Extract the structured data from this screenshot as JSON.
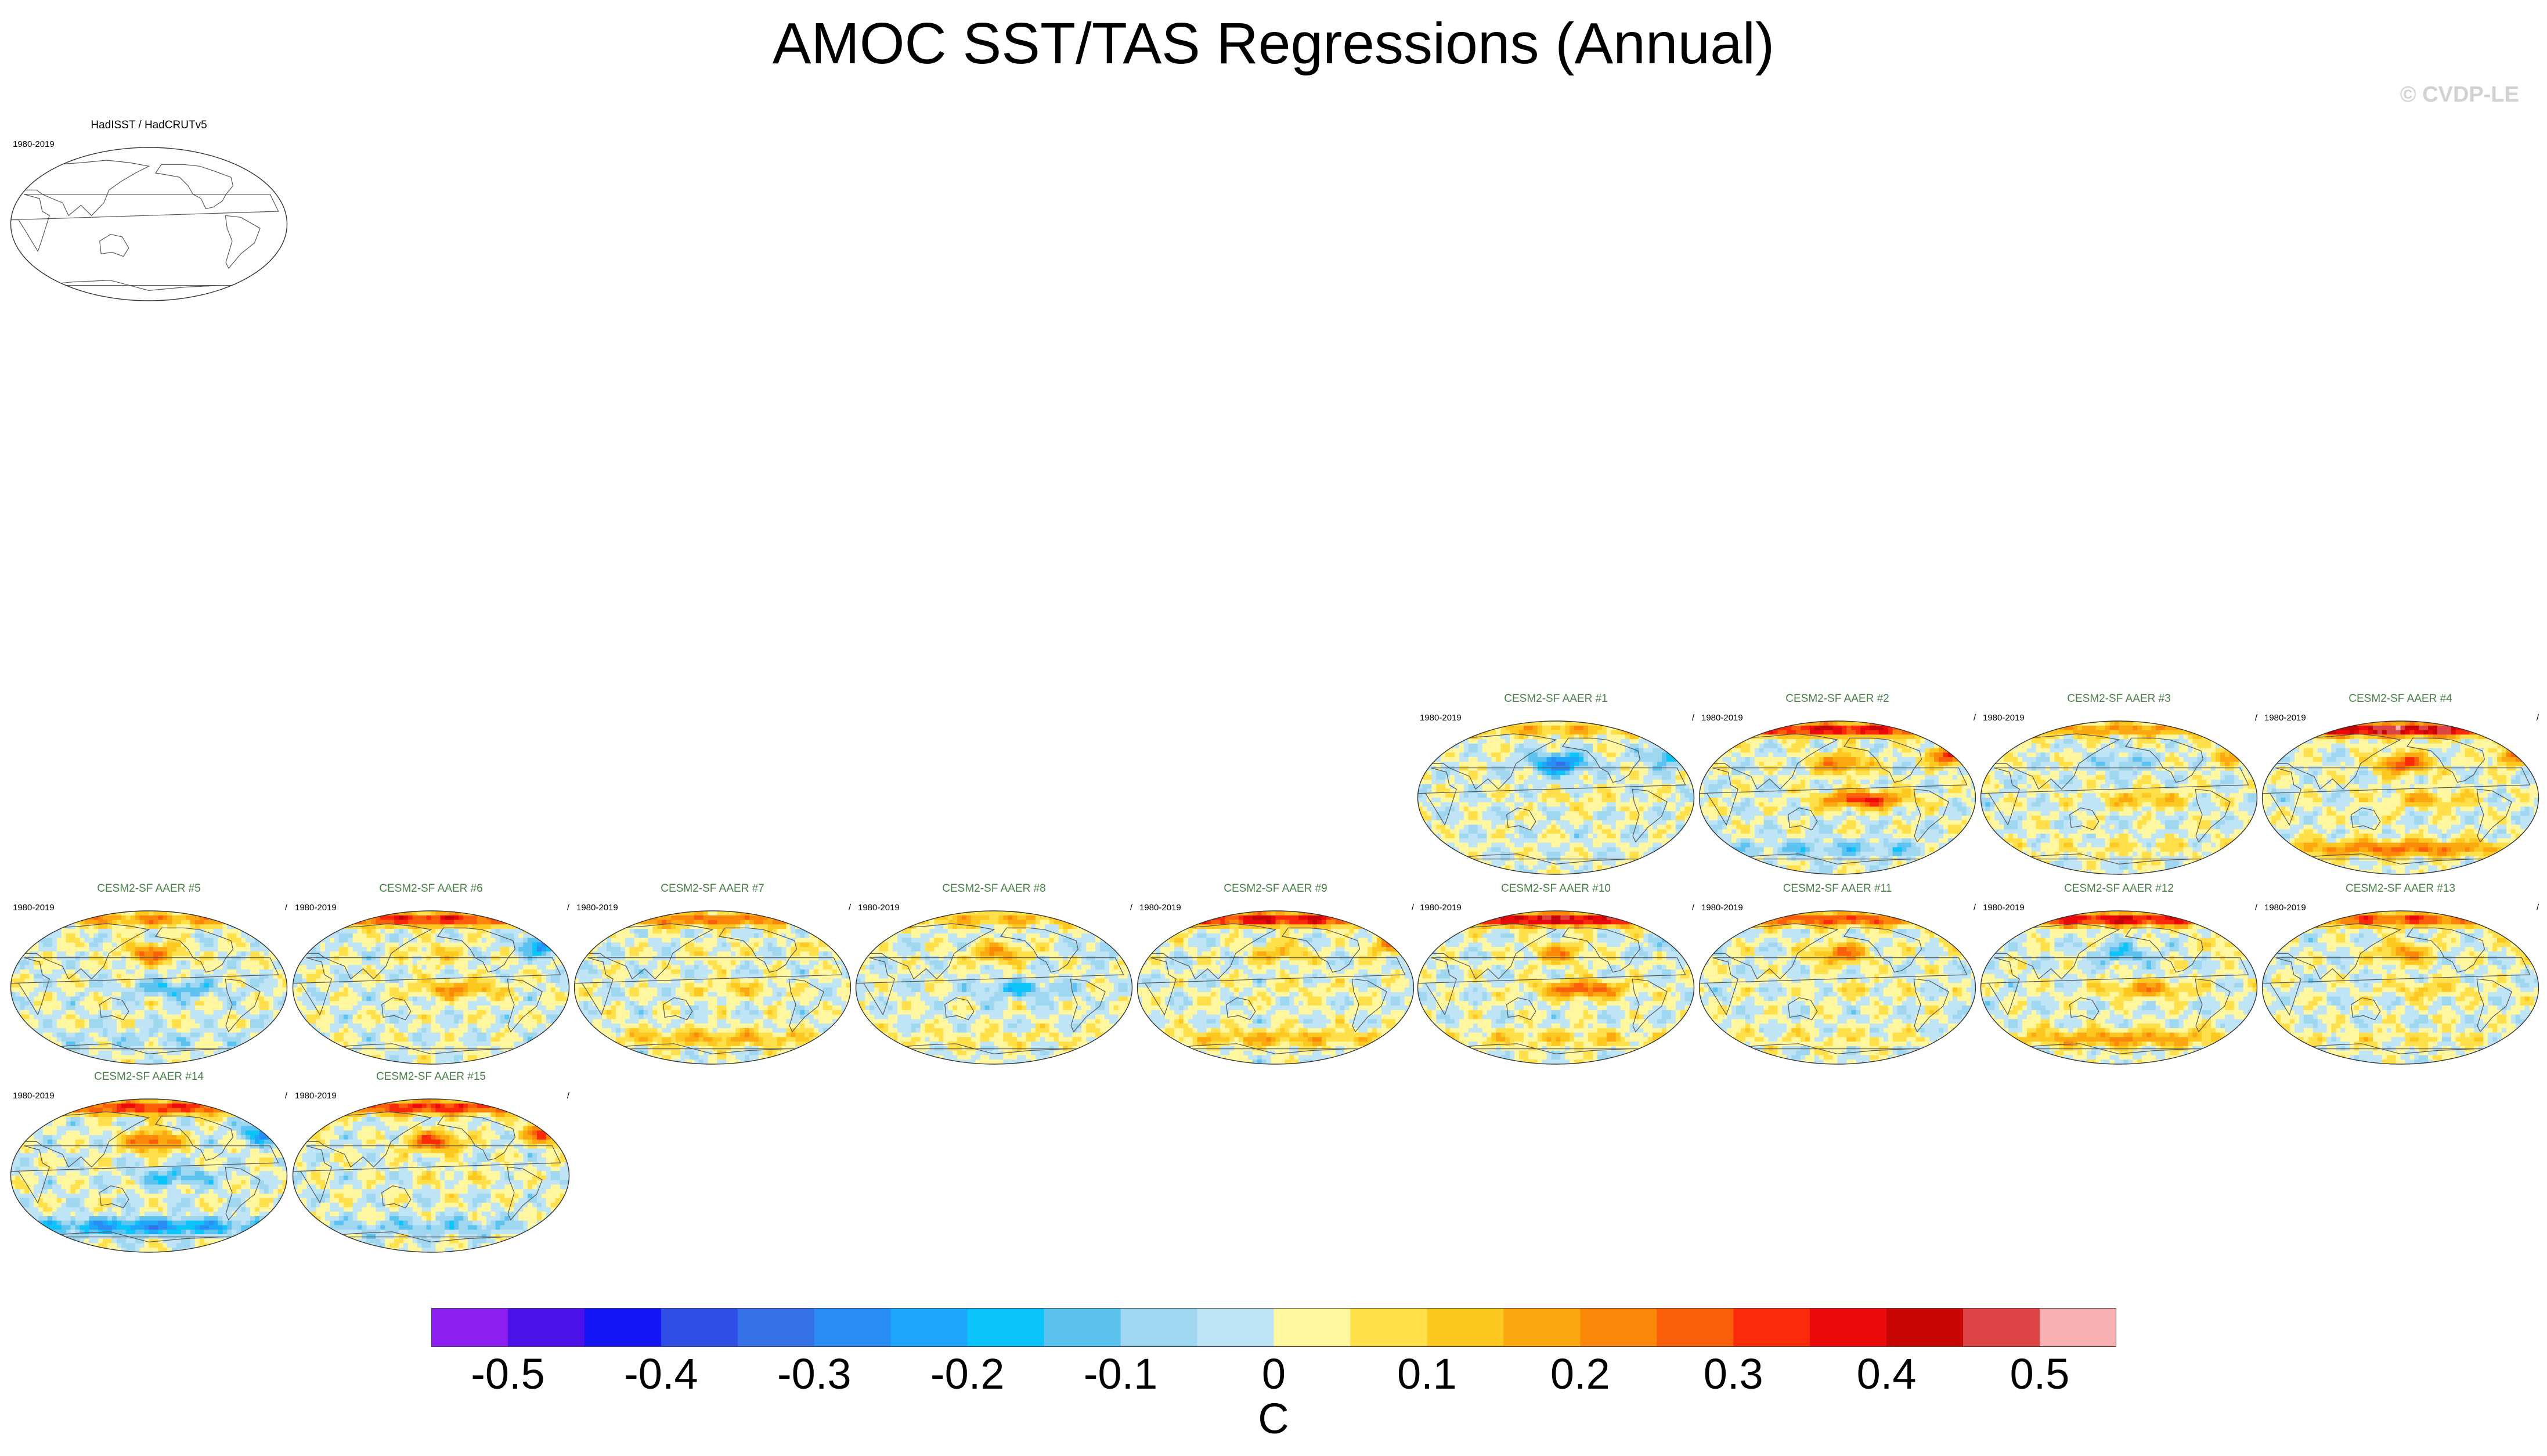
{
  "title": "AMOC SST/TAS Regressions (Annual)",
  "credit": "© CVDP-LE",
  "colorbar": {
    "units": "C",
    "tick_labels": [
      "-0.5",
      "-0.4",
      "-0.3",
      "-0.2",
      "-0.1",
      "0",
      "0.1",
      "0.2",
      "0.3",
      "0.4",
      "0.5"
    ],
    "colors": [
      "#8c1ff0",
      "#4a12e8",
      "#1414f5",
      "#2e4ee6",
      "#3470e6",
      "#2a8cf5",
      "#1ea7fa",
      "#0ac4fa",
      "#5cc2f0",
      "#9fd6f0",
      "#bfe4f6",
      "#fff6a0",
      "#ffe04a",
      "#fdc820",
      "#fca810",
      "#fc880a",
      "#fc5f0a",
      "#fb2a0a",
      "#ea0a0a",
      "#c80505",
      "#dd4445",
      "#f9b0b0"
    ]
  },
  "panels": [
    {
      "title": "HadISST / HadCRUTv5",
      "years": "1980-2019",
      "slash": "",
      "observation": true,
      "blank_field": true
    },
    {
      "title": "CESM2-SF AAER #1",
      "years": "1980-2019",
      "slash": "/",
      "observation": false
    },
    {
      "title": "CESM2-SF AAER #2",
      "years": "1980-2019",
      "slash": "/",
      "observation": false
    },
    {
      "title": "CESM2-SF AAER #3",
      "years": "1980-2019",
      "slash": "/",
      "observation": false
    },
    {
      "title": "CESM2-SF AAER #4",
      "years": "1980-2019",
      "slash": "/",
      "observation": false
    },
    {
      "title": "CESM2-SF AAER #5",
      "years": "1980-2019",
      "slash": "/",
      "observation": false
    },
    {
      "title": "CESM2-SF AAER #6",
      "years": "1980-2019",
      "slash": "/",
      "observation": false
    },
    {
      "title": "CESM2-SF AAER #7",
      "years": "1980-2019",
      "slash": "/",
      "observation": false
    },
    {
      "title": "CESM2-SF AAER #8",
      "years": "1980-2019",
      "slash": "/",
      "observation": false
    },
    {
      "title": "CESM2-SF AAER #9",
      "years": "1980-2019",
      "slash": "/",
      "observation": false
    },
    {
      "title": "CESM2-SF AAER #10",
      "years": "1980-2019",
      "slash": "/",
      "observation": false
    },
    {
      "title": "CESM2-SF AAER #11",
      "years": "1980-2019",
      "slash": "/",
      "observation": false
    },
    {
      "title": "CESM2-SF AAER #12",
      "years": "1980-2019",
      "slash": "/",
      "observation": false
    },
    {
      "title": "CESM2-SF AAER #13",
      "years": "1980-2019",
      "slash": "/",
      "observation": false
    },
    {
      "title": "CESM2-SF AAER #14",
      "years": "1980-2019",
      "slash": "/",
      "observation": false
    },
    {
      "title": "CESM2-SF AAER #15",
      "years": "1980-2019",
      "slash": "/",
      "observation": false
    }
  ],
  "chart_data": {
    "type": "heatmap",
    "title": "AMOC SST/TAS Regressions (Annual)",
    "projection": "global Robinson-style maps, one per dataset",
    "colorbar_units": "C",
    "value_range": [
      -0.55,
      0.55
    ],
    "contour_interval": 0.05,
    "series": [
      {
        "name": "HadISST / HadCRUTv5",
        "period": "1980-2019",
        "field": "blank"
      },
      {
        "name": "CESM2-SF AAER #1",
        "period": "1980-2019",
        "pattern": {
          "n_atlantic": -0.2,
          "n_pacific": -0.3,
          "tropical_pacific": 0.05,
          "southern_ocean": 0.0,
          "arctic": 0.15
        }
      },
      {
        "name": "CESM2-SF AAER #2",
        "period": "1980-2019",
        "pattern": {
          "n_atlantic": 0.35,
          "n_pacific": 0.25,
          "tropical_pacific": 0.35,
          "southern_ocean": -0.1,
          "arctic": 0.4
        }
      },
      {
        "name": "CESM2-SF AAER #3",
        "period": "1980-2019",
        "pattern": {
          "n_atlantic": 0.15,
          "n_pacific": -0.1,
          "tropical_pacific": 0.15,
          "southern_ocean": 0.05,
          "arctic": 0.2
        }
      },
      {
        "name": "CESM2-SF AAER #4",
        "period": "1980-2019",
        "pattern": {
          "n_atlantic": 0.25,
          "n_pacific": 0.3,
          "tropical_pacific": 0.15,
          "southern_ocean": 0.25,
          "arctic": 0.5
        }
      },
      {
        "name": "CESM2-SF AAER #5",
        "period": "1980-2019",
        "pattern": {
          "n_atlantic": 0.0,
          "n_pacific": 0.25,
          "tropical_pacific": -0.15,
          "southern_ocean": -0.05,
          "arctic": 0.2
        }
      },
      {
        "name": "CESM2-SF AAER #6",
        "period": "1980-2019",
        "pattern": {
          "n_atlantic": -0.25,
          "n_pacific": 0.1,
          "tropical_pacific": 0.2,
          "southern_ocean": 0.0,
          "arctic": 0.35
        }
      },
      {
        "name": "CESM2-SF AAER #7",
        "period": "1980-2019",
        "pattern": {
          "n_atlantic": 0.1,
          "n_pacific": 0.05,
          "tropical_pacific": 0.1,
          "southern_ocean": 0.15,
          "arctic": 0.25
        }
      },
      {
        "name": "CESM2-SF AAER #8",
        "period": "1980-2019",
        "pattern": {
          "n_atlantic": -0.1,
          "n_pacific": 0.2,
          "tropical_pacific": -0.15,
          "southern_ocean": 0.05,
          "arctic": 0.15
        }
      },
      {
        "name": "CESM2-SF AAER #9",
        "period": "1980-2019",
        "pattern": {
          "n_atlantic": 0.2,
          "n_pacific": 0.15,
          "tropical_pacific": 0.05,
          "southern_ocean": 0.15,
          "arctic": 0.4
        }
      },
      {
        "name": "CESM2-SF AAER #10",
        "period": "1980-2019",
        "pattern": {
          "n_atlantic": -0.1,
          "n_pacific": 0.2,
          "tropical_pacific": 0.3,
          "southern_ocean": 0.1,
          "arctic": 0.45
        }
      },
      {
        "name": "CESM2-SF AAER #11",
        "period": "1980-2019",
        "pattern": {
          "n_atlantic": 0.05,
          "n_pacific": 0.25,
          "tropical_pacific": 0.05,
          "southern_ocean": 0.05,
          "arctic": 0.3
        }
      },
      {
        "name": "CESM2-SF AAER #12",
        "period": "1980-2019",
        "pattern": {
          "n_atlantic": 0.1,
          "n_pacific": -0.15,
          "tropical_pacific": 0.2,
          "southern_ocean": 0.2,
          "arctic": 0.4
        }
      },
      {
        "name": "CESM2-SF AAER #13",
        "period": "1980-2019",
        "pattern": {
          "n_atlantic": 0.05,
          "n_pacific": 0.2,
          "tropical_pacific": 0.1,
          "southern_ocean": 0.05,
          "arctic": 0.3
        }
      },
      {
        "name": "CESM2-SF AAER #14",
        "period": "1980-2019",
        "pattern": {
          "n_atlantic": -0.25,
          "n_pacific": 0.3,
          "tropical_pacific": -0.15,
          "southern_ocean": -0.25,
          "arctic": 0.35
        }
      },
      {
        "name": "CESM2-SF AAER #15",
        "period": "1980-2019",
        "pattern": {
          "n_atlantic": 0.3,
          "n_pacific": 0.3,
          "tropical_pacific": 0.05,
          "southern_ocean": -0.1,
          "arctic": 0.35
        }
      }
    ]
  }
}
